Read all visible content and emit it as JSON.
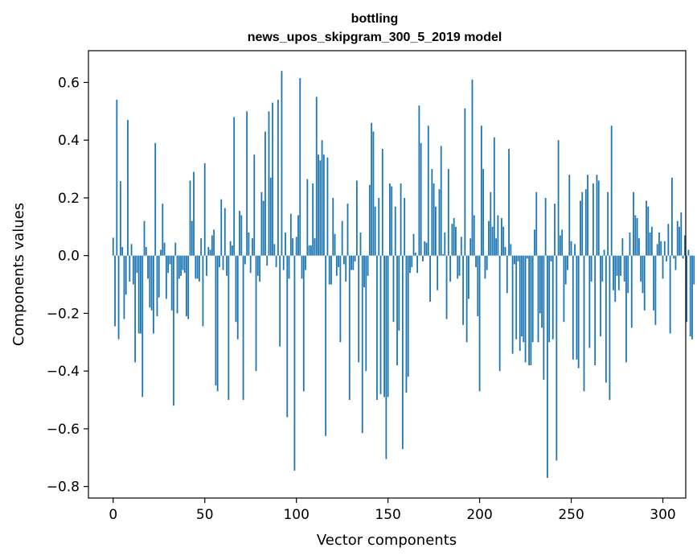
{
  "chart_data": {
    "type": "bar",
    "title": "bottling",
    "subtitle": "news_upos_skipgram_300_5_2019 model",
    "xlabel": "Vector components",
    "ylabel": "Components values",
    "xlim": [
      -13.5,
      312.5
    ],
    "ylim": [
      -0.84,
      0.71
    ],
    "xticks": [
      0,
      50,
      100,
      150,
      200,
      250,
      300
    ],
    "yticks": [
      -0.8,
      -0.6,
      -0.4,
      -0.2,
      0.0,
      0.2,
      0.4,
      0.6
    ],
    "ytick_labels": [
      "−0.8",
      "−0.6",
      "−0.4",
      "−0.2",
      "0.0",
      "0.2",
      "0.4",
      "0.6"
    ],
    "grid": false,
    "bar_color": "#1f77b4",
    "values": [
      0.062,
      -0.245,
      0.54,
      -0.29,
      0.258,
      0.03,
      -0.22,
      -0.135,
      0.47,
      -0.09,
      0.04,
      -0.1,
      -0.37,
      -0.06,
      -0.27,
      -0.27,
      -0.49,
      0.12,
      0.03,
      -0.08,
      -0.18,
      -0.19,
      -0.27,
      0.39,
      -0.21,
      -0.145,
      0.02,
      0.18,
      0.045,
      -0.15,
      -0.06,
      -0.03,
      -0.19,
      -0.52,
      0.045,
      -0.2,
      -0.08,
      -0.07,
      -0.05,
      -0.06,
      -0.21,
      -0.22,
      0.26,
      0.12,
      0.29,
      -0.08,
      -0.08,
      -0.09,
      0.06,
      -0.245,
      0.32,
      -0.07,
      0.03,
      0.02,
      0.07,
      0.09,
      -0.45,
      -0.47,
      -0.04,
      0.195,
      -0.05,
      0.165,
      -0.07,
      -0.5,
      0.05,
      0.035,
      0.48,
      -0.23,
      -0.29,
      0.155,
      0.14,
      -0.5,
      -0.03,
      0.5,
      0.08,
      -0.06,
      0.06,
      0.35,
      -0.4,
      -0.07,
      -0.09,
      0.22,
      0.19,
      0.43,
      -0.035,
      0.5,
      0.27,
      0.53,
      0.04,
      -0.04,
      0.54,
      -0.315,
      0.64,
      -0.05,
      0.08,
      -0.56,
      -0.08,
      0.145,
      0.06,
      -0.745,
      0.065,
      0.14,
      0.615,
      -0.08,
      -0.47,
      -0.05,
      0.265,
      0.035,
      0.035,
      0.25,
      0.06,
      0.55,
      0.35,
      0.33,
      0.4,
      0.35,
      -0.625,
      0.34,
      -0.1,
      -0.1,
      0.2,
      0.075,
      -0.07,
      -0.04,
      -0.3,
      0.12,
      -0.03,
      -0.09,
      0.18,
      -0.5,
      -0.05,
      -0.05,
      -0.02,
      0.26,
      -0.37,
      0.08,
      -0.615,
      -0.11,
      -0.4,
      -0.07,
      0.245,
      0.46,
      0.43,
      0.17,
      -0.5,
      0.2,
      -0.48,
      0.37,
      -0.49,
      -0.705,
      -0.49,
      0.25,
      0.24,
      -0.23,
      0.17,
      -0.38,
      -0.26,
      0.25,
      -0.67,
      0.2,
      -0.475,
      -0.42,
      -0.06,
      -0.04,
      0.075,
      0.01,
      -0.06,
      0.52,
      0.39,
      -0.02,
      0.05,
      0.045,
      0.45,
      -0.16,
      0.3,
      0.25,
      0.17,
      -0.12,
      0.23,
      0.38,
      0.005,
      0.08,
      -0.22,
      0.3,
      -0.09,
      0.11,
      0.13,
      0.1,
      -0.08,
      -0.07,
      0.065,
      -0.24,
      0.51,
      -0.3,
      -0.15,
      0.06,
      0.61,
      0.14,
      -0.04,
      -0.21,
      -0.47,
      0.45,
      0.3,
      -0.08,
      -0.05,
      0.12,
      0.22,
      0.1,
      0.41,
      0.06,
      0.14,
      -0.4,
      0.13,
      0.1,
      0.03,
      -0.13,
      0.37,
      0.04,
      -0.34,
      -0.03,
      -0.29,
      -0.02,
      -0.33,
      -0.28,
      -0.3,
      -0.37,
      -0.01,
      -0.38,
      -0.38,
      -0.3,
      0.09,
      0.22,
      -0.3,
      -0.2,
      -0.25,
      -0.43,
      0.2,
      -0.77,
      -0.3,
      -0.02,
      -0.29,
      0.18,
      -0.71,
      0.4,
      0.07,
      0.09,
      -0.23,
      -0.1,
      -0.05,
      0.28,
      0.05,
      -0.36,
      0.04,
      -0.36,
      -0.39,
      0.19,
      0.22,
      -0.47,
      0.23,
      0.28,
      -0.32,
      -0.09,
      0.25,
      -0.38,
      0.28,
      0.26,
      -0.28,
      -0.09,
      0.02,
      -0.44,
      0.22,
      -0.5,
      0.45,
      -0.12,
      -0.16,
      -0.07,
      -0.12,
      -0.07,
      0.06,
      -0.09,
      -0.37,
      -0.13,
      0.08,
      -0.25,
      0.22,
      0.14,
      0.13,
      0.06,
      -0.09,
      -0.13,
      -0.19,
      0.19,
      0.17,
      0.08,
      0.1,
      -0.19,
      -0.24,
      0.04,
      0.08,
      0.05,
      -0.08,
      0.05,
      -0.02,
      0.11,
      -0.27,
      0.27,
      -0.01,
      -0.05,
      0.12,
      0.1,
      0.15,
      -0.01,
      0.07,
      -0.23,
      0.02,
      -0.28,
      -0.29,
      -0.1
    ]
  }
}
